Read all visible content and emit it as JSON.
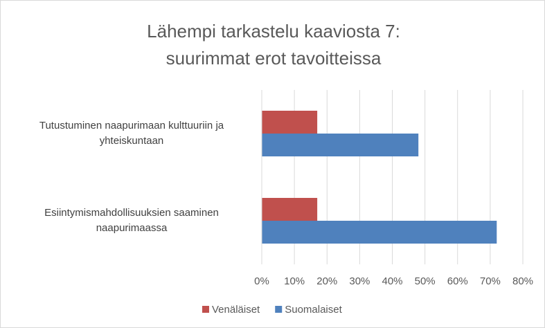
{
  "chart_data": {
    "type": "bar",
    "orientation": "horizontal",
    "title": [
      "Lähempi tarkastelu kaaviosta 7:",
      "suurimmat erot tavoitteissa"
    ],
    "categories": [
      "Tutustuminen naapurimaan kulttuuriin ja yhteiskuntaan",
      "Esiintymismahdollisuuksien saaminen naapurimaassa"
    ],
    "series": [
      {
        "name": "Venäläiset",
        "color": "#c0504d",
        "values": [
          17,
          17
        ]
      },
      {
        "name": "Suomalaiset",
        "color": "#4f81bd",
        "values": [
          48,
          72
        ]
      }
    ],
    "xlim": [
      0,
      80
    ],
    "xticks": [
      {
        "value": 0,
        "label": "0%"
      },
      {
        "value": 10,
        "label": "10%"
      },
      {
        "value": 20,
        "label": "20%"
      },
      {
        "value": 30,
        "label": "30%"
      },
      {
        "value": 40,
        "label": "40%"
      },
      {
        "value": 50,
        "label": "50%"
      },
      {
        "value": 60,
        "label": "60%"
      },
      {
        "value": 70,
        "label": "70%"
      },
      {
        "value": 80,
        "label": "80%"
      }
    ],
    "grid": true,
    "legend": "bottom"
  }
}
